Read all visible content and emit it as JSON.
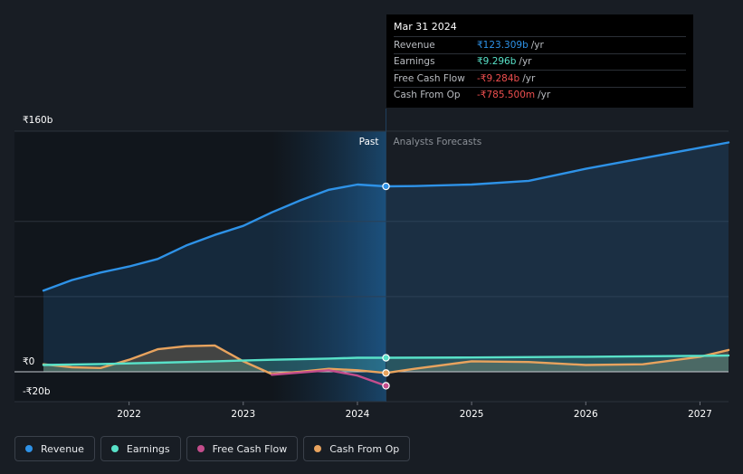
{
  "chart_data": {
    "type": "line",
    "ylim": [
      -20,
      160
    ],
    "y_tick_labels": [
      {
        "value": 160,
        "label": "₹160b"
      },
      {
        "value": 0,
        "label": "₹0"
      },
      {
        "value": -20,
        "label": "-₹20b"
      }
    ],
    "x_tick_labels": [
      {
        "value": 2022,
        "label": "2022"
      },
      {
        "value": 2023,
        "label": "2023"
      },
      {
        "value": 2024,
        "label": "2024"
      },
      {
        "value": 2025,
        "label": "2025"
      },
      {
        "value": 2026,
        "label": "2026"
      },
      {
        "value": 2027,
        "label": "2027"
      }
    ],
    "xlim": [
      2021.25,
      2027.25
    ],
    "divider_x": 2024.25,
    "shade_start_x": 2023.25,
    "past_label": "Past",
    "forecast_label": "Analysts Forecasts",
    "series": [
      {
        "name": "Revenue",
        "color": "#2e92e7",
        "fill": true,
        "points": [
          [
            2021.25,
            54
          ],
          [
            2021.5,
            61
          ],
          [
            2021.75,
            66
          ],
          [
            2022.0,
            70
          ],
          [
            2022.25,
            75
          ],
          [
            2022.5,
            84
          ],
          [
            2022.75,
            91
          ],
          [
            2023.0,
            97
          ],
          [
            2023.25,
            106
          ],
          [
            2023.5,
            114
          ],
          [
            2023.75,
            121
          ],
          [
            2024.0,
            124.5
          ],
          [
            2024.25,
            123.3
          ],
          [
            2024.5,
            123.5
          ],
          [
            2025.0,
            124.5
          ],
          [
            2025.5,
            127
          ],
          [
            2026.0,
            135
          ],
          [
            2026.5,
            142
          ],
          [
            2027.0,
            149
          ],
          [
            2027.25,
            152.5
          ]
        ],
        "marker_x": 2024.25,
        "marker_y": 123.3
      },
      {
        "name": "Earnings",
        "color": "#58e1c8",
        "fill": true,
        "points": [
          [
            2021.25,
            4.5
          ],
          [
            2021.75,
            5.2
          ],
          [
            2022.25,
            6
          ],
          [
            2022.75,
            7
          ],
          [
            2023.25,
            8
          ],
          [
            2023.75,
            8.8
          ],
          [
            2024.0,
            9.3
          ],
          [
            2024.25,
            9.3
          ],
          [
            2025.0,
            9.5
          ],
          [
            2026.0,
            10
          ],
          [
            2027.0,
            10.6
          ],
          [
            2027.25,
            10.8
          ]
        ],
        "marker_x": 2024.25,
        "marker_y": 9.3
      },
      {
        "name": "Free Cash Flow",
        "color": "#c44d8c",
        "fill": false,
        "points": [
          [
            2023.25,
            -2
          ],
          [
            2023.5,
            -0.5
          ],
          [
            2023.75,
            1
          ],
          [
            2024.0,
            -2.5
          ],
          [
            2024.25,
            -9.3
          ]
        ],
        "marker_x": 2024.25,
        "marker_y": -9.3
      },
      {
        "name": "Cash From Op",
        "color": "#e8a35e",
        "fill": true,
        "points": [
          [
            2021.25,
            5
          ],
          [
            2021.5,
            3
          ],
          [
            2021.75,
            2.5
          ],
          [
            2022.0,
            8
          ],
          [
            2022.25,
            15
          ],
          [
            2022.5,
            17
          ],
          [
            2022.75,
            17.5
          ],
          [
            2023.0,
            7
          ],
          [
            2023.25,
            -1.5
          ],
          [
            2023.5,
            0
          ],
          [
            2023.75,
            2
          ],
          [
            2024.0,
            1
          ],
          [
            2024.25,
            -0.8
          ],
          [
            2024.5,
            2
          ],
          [
            2025.0,
            7
          ],
          [
            2025.5,
            6.5
          ],
          [
            2026.0,
            4.5
          ],
          [
            2026.5,
            5
          ],
          [
            2027.0,
            10
          ],
          [
            2027.25,
            14.5
          ]
        ],
        "marker_x": 2024.25,
        "marker_y": -0.8
      }
    ]
  },
  "tooltip": {
    "date": "Mar 31 2024",
    "rows": [
      {
        "label": "Revenue",
        "value": "₹123.309b",
        "unit": "/yr",
        "color": "#2e92e7"
      },
      {
        "label": "Earnings",
        "value": "₹9.296b",
        "unit": "/yr",
        "color": "#58e1c8"
      },
      {
        "label": "Free Cash Flow",
        "value": "-₹9.284b",
        "unit": "/yr",
        "color": "#ef4f4f"
      },
      {
        "label": "Cash From Op",
        "value": "-₹785.500m",
        "unit": "/yr",
        "color": "#ef4f4f"
      }
    ]
  },
  "legend": [
    {
      "label": "Revenue",
      "color": "#2e92e7"
    },
    {
      "label": "Earnings",
      "color": "#58e1c8"
    },
    {
      "label": "Free Cash Flow",
      "color": "#c44d8c"
    },
    {
      "label": "Cash From Op",
      "color": "#e8a35e"
    }
  ]
}
